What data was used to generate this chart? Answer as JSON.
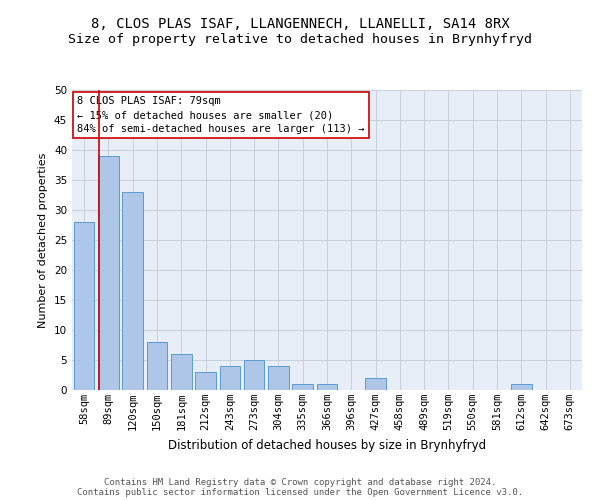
{
  "title": "8, CLOS PLAS ISAF, LLANGENNECH, LLANELLI, SA14 8RX",
  "subtitle": "Size of property relative to detached houses in Brynhyfryd",
  "xlabel": "Distribution of detached houses by size in Brynhyfryd",
  "ylabel": "Number of detached properties",
  "categories": [
    "58sqm",
    "89sqm",
    "120sqm",
    "150sqm",
    "181sqm",
    "212sqm",
    "243sqm",
    "273sqm",
    "304sqm",
    "335sqm",
    "366sqm",
    "396sqm",
    "427sqm",
    "458sqm",
    "489sqm",
    "519sqm",
    "550sqm",
    "581sqm",
    "612sqm",
    "642sqm",
    "673sqm"
  ],
  "values": [
    28,
    39,
    33,
    8,
    6,
    3,
    4,
    5,
    4,
    1,
    1,
    0,
    2,
    0,
    0,
    0,
    0,
    0,
    1,
    0,
    0
  ],
  "bar_color": "#aec6e8",
  "bar_edge_color": "#5b9bd5",
  "highlight_line_color": "#cc0000",
  "annotation_text": "8 CLOS PLAS ISAF: 79sqm\n← 15% of detached houses are smaller (20)\n84% of semi-detached houses are larger (113) →",
  "annotation_box_color": "#ffffff",
  "annotation_box_edge_color": "#cc0000",
  "ylim": [
    0,
    50
  ],
  "yticks": [
    0,
    5,
    10,
    15,
    20,
    25,
    30,
    35,
    40,
    45,
    50
  ],
  "grid_color": "#c8d0dc",
  "bg_color": "#e8eef7",
  "footer1": "Contains HM Land Registry data © Crown copyright and database right 2024.",
  "footer2": "Contains public sector information licensed under the Open Government Licence v3.0.",
  "title_fontsize": 10,
  "subtitle_fontsize": 9.5,
  "xlabel_fontsize": 8.5,
  "ylabel_fontsize": 8,
  "tick_fontsize": 7.5,
  "annotation_fontsize": 7.5,
  "footer_fontsize": 6.5
}
